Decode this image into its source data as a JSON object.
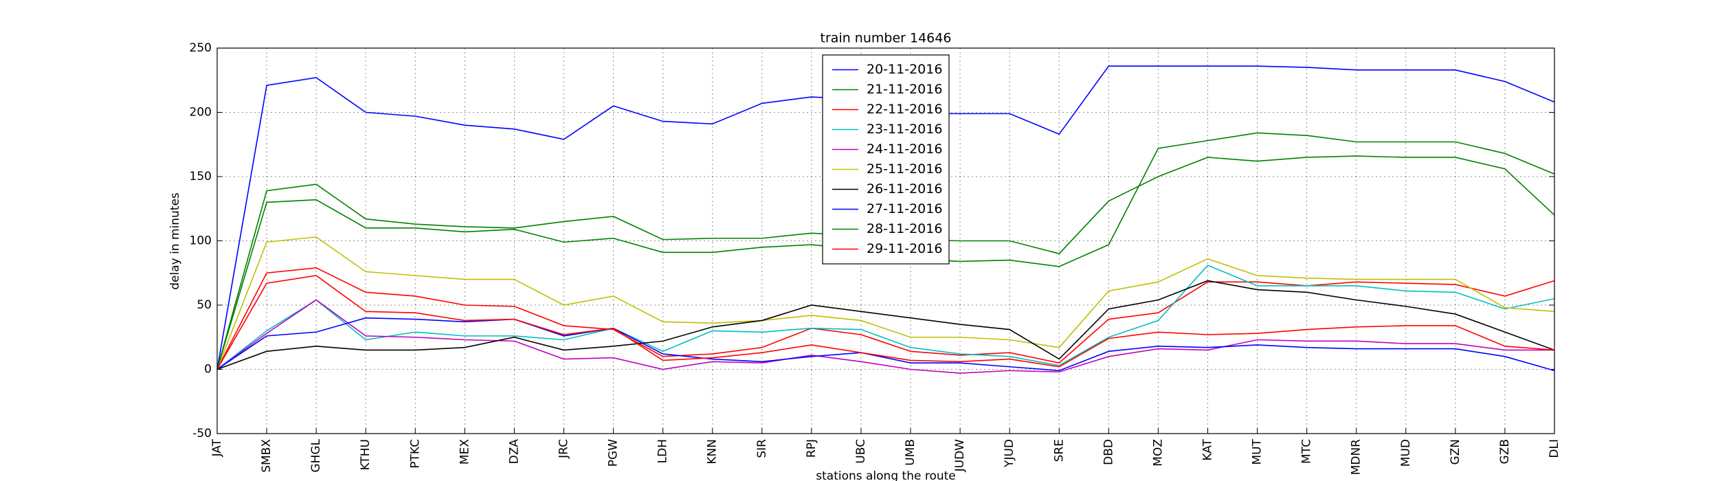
{
  "chart_data": {
    "type": "line",
    "title": "train number 14646",
    "xlabel": "stations along the route",
    "ylabel": "delay in minutes",
    "categories": [
      "JAT",
      "SMBX",
      "GHGL",
      "KTHU",
      "PTKC",
      "MEX",
      "DZA",
      "JRC",
      "PGW",
      "LDH",
      "KNN",
      "SIR",
      "RPJ",
      "UBC",
      "UMB",
      "JUDW",
      "YJUD",
      "SRE",
      "DBD",
      "MOZ",
      "KAT",
      "MUT",
      "MTC",
      "MDNR",
      "MUD",
      "GZN",
      "GZB",
      "DLI"
    ],
    "ylim": [
      -50,
      250
    ],
    "yticks": [
      -50,
      0,
      50,
      100,
      150,
      200,
      250
    ],
    "grid": true,
    "legend_loc": "upper center",
    "series": [
      {
        "name": "20-11-2016",
        "color": "#0000ff",
        "values": [
          0,
          221,
          227,
          200,
          197,
          190,
          187,
          179,
          205,
          193,
          191,
          207,
          212,
          210,
          199,
          199,
          199,
          183,
          236,
          236,
          236,
          236,
          235,
          233,
          233,
          233,
          224,
          208
        ]
      },
      {
        "name": "21-11-2016",
        "color": "#008000",
        "values": [
          0,
          139,
          144,
          117,
          113,
          111,
          110,
          115,
          119,
          101,
          102,
          102,
          106,
          104,
          101,
          100,
          100,
          90,
          131,
          150,
          165,
          162,
          165,
          166,
          165,
          165,
          156,
          120
        ]
      },
      {
        "name": "22-11-2016",
        "color": "#ff0000",
        "values": [
          0,
          75,
          79,
          60,
          57,
          50,
          49,
          34,
          31,
          10,
          12,
          17,
          32,
          27,
          14,
          11,
          13,
          5,
          39,
          44,
          68,
          68,
          65,
          68,
          67,
          66,
          57,
          69
        ]
      },
      {
        "name": "23-11-2016",
        "color": "#00bfbf",
        "values": [
          0,
          30,
          54,
          23,
          29,
          26,
          26,
          23,
          32,
          14,
          30,
          29,
          32,
          31,
          17,
          12,
          10,
          3,
          25,
          38,
          81,
          65,
          65,
          65,
          61,
          60,
          47,
          55
        ]
      },
      {
        "name": "24-11-2016",
        "color": "#bf00bf",
        "values": [
          0,
          28,
          54,
          26,
          25,
          23,
          22,
          8,
          9,
          0,
          6,
          5,
          11,
          6,
          0,
          -3,
          -1,
          -2,
          10,
          16,
          15,
          23,
          22,
          22,
          20,
          20,
          15,
          15
        ]
      },
      {
        "name": "25-11-2016",
        "color": "#bfbf00",
        "values": [
          0,
          99,
          103,
          76,
          73,
          70,
          70,
          50,
          57,
          37,
          36,
          38,
          42,
          38,
          25,
          25,
          23,
          17,
          61,
          68,
          86,
          73,
          71,
          70,
          70,
          70,
          48,
          45
        ]
      },
      {
        "name": "26-11-2016",
        "color": "#000000",
        "values": [
          0,
          14,
          18,
          15,
          15,
          17,
          25,
          15,
          18,
          22,
          33,
          38,
          50,
          45,
          40,
          35,
          31,
          8,
          47,
          54,
          69,
          62,
          60,
          54,
          49,
          43,
          29,
          15
        ]
      },
      {
        "name": "27-11-2016",
        "color": "#0000ff",
        "values": [
          0,
          26,
          29,
          40,
          39,
          37,
          39,
          26,
          32,
          12,
          8,
          6,
          10,
          13,
          5,
          5,
          2,
          -1,
          14,
          18,
          17,
          19,
          17,
          16,
          16,
          16,
          10,
          -1
        ]
      },
      {
        "name": "28-11-2016",
        "color": "#008000",
        "values": [
          0,
          130,
          132,
          110,
          110,
          107,
          109,
          99,
          102,
          91,
          91,
          95,
          97,
          93,
          86,
          84,
          85,
          80,
          97,
          172,
          178,
          184,
          182,
          177,
          177,
          177,
          168,
          152
        ]
      },
      {
        "name": "29-11-2016",
        "color": "#ff0000",
        "values": [
          0,
          67,
          73,
          45,
          44,
          38,
          39,
          27,
          32,
          7,
          9,
          13,
          19,
          13,
          7,
          6,
          8,
          2,
          24,
          29,
          27,
          28,
          31,
          33,
          34,
          34,
          18,
          15
        ]
      }
    ]
  }
}
